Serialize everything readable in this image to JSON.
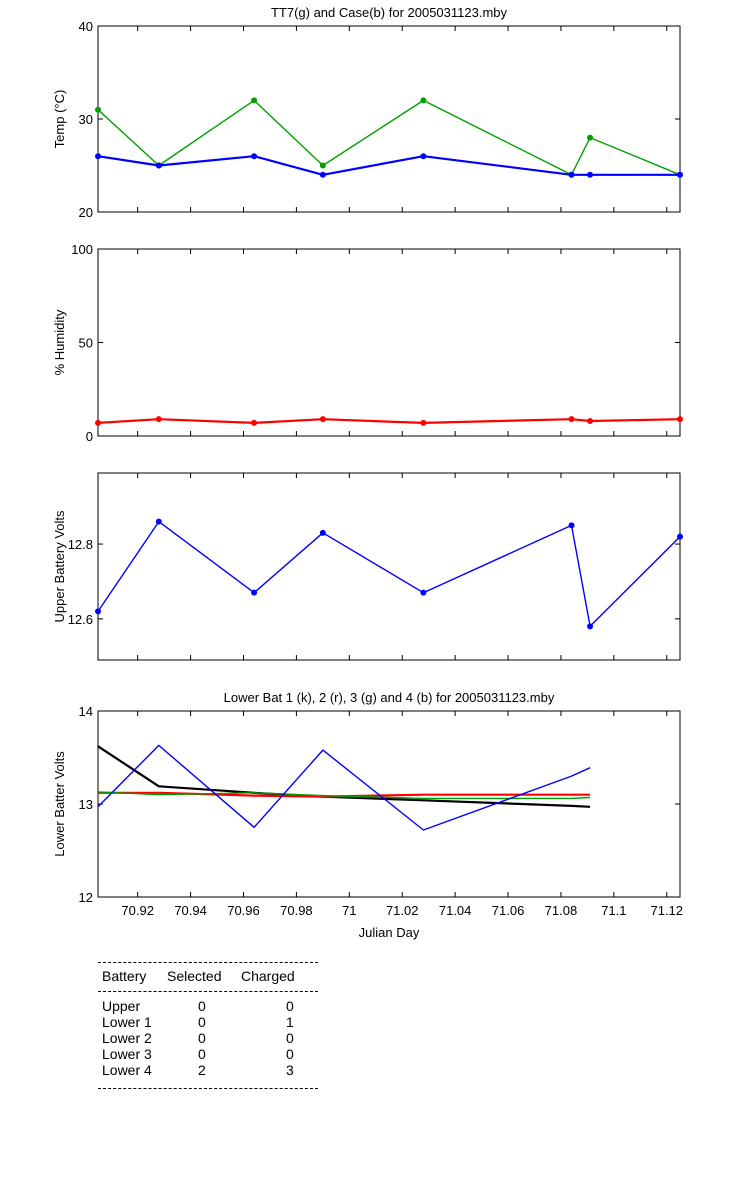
{
  "colors": {
    "green": "#00a000",
    "blue": "#0000ff",
    "red": "#ff0000",
    "black": "#000000"
  },
  "chart_data": [
    {
      "type": "line",
      "title": "TT7(g) and Case(b) for 2005031123.mby",
      "xlabel": "",
      "ylabel": "Temp  (°C)",
      "xlim": [
        70.905,
        71.125
      ],
      "ylim": [
        20,
        40
      ],
      "yticks": [
        20,
        30,
        40
      ],
      "series": [
        {
          "color": "#00a000",
          "markers": true,
          "x": [
            70.905,
            70.928,
            70.964,
            70.99,
            71.028,
            71.084,
            71.091,
            71.125
          ],
          "y": [
            31,
            25,
            32,
            25,
            32,
            24,
            28,
            24
          ]
        },
        {
          "color": "#0000ff",
          "markers": true,
          "thick": true,
          "x": [
            70.905,
            70.928,
            70.964,
            70.99,
            71.028,
            71.084,
            71.091,
            71.125
          ],
          "y": [
            26,
            25,
            26,
            24,
            26,
            24,
            24,
            24
          ]
        }
      ]
    },
    {
      "type": "line",
      "title": "",
      "xlabel": "",
      "ylabel": "% Humidity",
      "xlim": [
        70.905,
        71.125
      ],
      "ylim": [
        0,
        100
      ],
      "yticks": [
        0,
        50,
        100
      ],
      "series": [
        {
          "color": "#ff0000",
          "markers": true,
          "thick": true,
          "x": [
            70.905,
            70.928,
            70.964,
            70.99,
            71.028,
            71.084,
            71.091,
            71.125
          ],
          "y": [
            7,
            9,
            7,
            9,
            7,
            9,
            8,
            9
          ]
        }
      ]
    },
    {
      "type": "line",
      "title": "",
      "xlabel": "",
      "ylabel": "Upper Battery Volts",
      "xlim": [
        70.905,
        71.125
      ],
      "ylim": [
        12.49,
        12.99
      ],
      "yticks": [
        12.6,
        12.8
      ],
      "yticklabels": [
        "12.6",
        "12.8"
      ],
      "series": [
        {
          "color": "#0000ff",
          "markers": true,
          "x": [
            70.905,
            70.928,
            70.964,
            70.99,
            71.028,
            71.084,
            71.091,
            71.125
          ],
          "y": [
            12.62,
            12.86,
            12.67,
            12.83,
            12.67,
            12.85,
            12.58,
            12.82
          ]
        }
      ]
    },
    {
      "type": "line",
      "title": "Lower Bat 1 (k), 2 (r), 3 (g) and 4 (b) for 2005031123.mby",
      "xlabel": "Julian Day",
      "ylabel": "Lower Batter Volts",
      "xlim": [
        70.905,
        71.125
      ],
      "ylim": [
        12,
        14
      ],
      "yticks": [
        12,
        13,
        14
      ],
      "xticks": [
        70.92,
        70.94,
        70.96,
        70.98,
        71,
        71.02,
        71.04,
        71.06,
        71.08,
        71.1,
        71.12
      ],
      "xticklabels": [
        "70.92",
        "70.94",
        "70.96",
        "70.98",
        "71",
        "71.02",
        "71.04",
        "71.06",
        "71.08",
        "71.1",
        "71.12"
      ],
      "series": [
        {
          "color": "#000000",
          "thick": true,
          "x": [
            70.905,
            70.928,
            70.964,
            70.99,
            71.028,
            71.084,
            71.091
          ],
          "y": [
            13.62,
            13.19,
            13.12,
            13.08,
            13.04,
            12.98,
            12.97
          ]
        },
        {
          "color": "#ff0000",
          "thick": true,
          "x": [
            70.905,
            70.928,
            70.964,
            70.99,
            71.028,
            71.084,
            71.091
          ],
          "y": [
            13.12,
            13.12,
            13.09,
            13.08,
            13.1,
            13.1,
            13.1
          ]
        },
        {
          "color": "#00a000",
          "x": [
            70.905,
            70.928,
            70.964,
            70.99,
            71.028,
            71.084,
            71.091
          ],
          "y": [
            13.13,
            13.1,
            13.12,
            13.09,
            13.06,
            13.06,
            13.07
          ]
        },
        {
          "color": "#0000ff",
          "x": [
            70.905,
            70.928,
            70.964,
            70.99,
            71.028,
            71.084,
            71.091
          ],
          "y": [
            12.97,
            13.63,
            12.75,
            13.58,
            12.72,
            13.3,
            13.39
          ]
        }
      ]
    }
  ],
  "battery_table": {
    "headers": [
      "Battery",
      "Selected",
      "Charged"
    ],
    "rows": [
      {
        "battery": "Upper",
        "selected": "0",
        "charged": "0"
      },
      {
        "battery": "Lower 1",
        "selected": "0",
        "charged": "1"
      },
      {
        "battery": "Lower 2",
        "selected": "0",
        "charged": "0"
      },
      {
        "battery": "Lower 3",
        "selected": "0",
        "charged": "0"
      },
      {
        "battery": "Lower 4",
        "selected": "2",
        "charged": "3"
      }
    ]
  }
}
